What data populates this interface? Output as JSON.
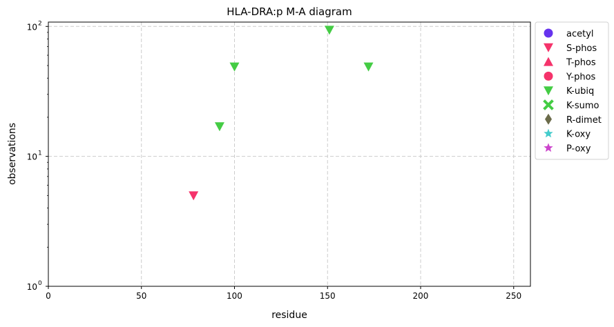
{
  "chart_data": {
    "type": "scatter",
    "title": "HLA-DRA:p M-A diagram",
    "xlabel": "residue",
    "ylabel": "observations",
    "xlim": [
      0,
      259
    ],
    "ylim": [
      1,
      108
    ],
    "yscale": "log",
    "x_ticks": [
      0,
      50,
      100,
      150,
      200,
      250
    ],
    "y_ticks": [
      {
        "value": 1,
        "base": "10",
        "exp": "0"
      },
      {
        "value": 10,
        "base": "10",
        "exp": "1"
      },
      {
        "value": 100,
        "base": "10",
        "exp": "2"
      }
    ],
    "grid": true,
    "legend_position": "outside-right-top",
    "series": [
      {
        "name": "acetyl",
        "marker": "circle",
        "color": "#6633ee",
        "points": []
      },
      {
        "name": "S-phos",
        "marker": "triangle-down",
        "color": "#f5336b",
        "points": [
          {
            "x": 78,
            "y": 5
          }
        ]
      },
      {
        "name": "T-phos",
        "marker": "triangle-up",
        "color": "#f5336b",
        "points": []
      },
      {
        "name": "Y-phos",
        "marker": "circle",
        "color": "#f5336b",
        "points": []
      },
      {
        "name": "K-ubiq",
        "marker": "triangle-down",
        "color": "#44cc44",
        "points": [
          {
            "x": 92,
            "y": 17
          },
          {
            "x": 100,
            "y": 49
          },
          {
            "x": 151,
            "y": 94
          },
          {
            "x": 172,
            "y": 49
          }
        ]
      },
      {
        "name": "K-sumo",
        "marker": "x",
        "color": "#44cc44",
        "points": []
      },
      {
        "name": "R-dimet",
        "marker": "diamond",
        "color": "#6b6b4a",
        "points": []
      },
      {
        "name": "K-oxy",
        "marker": "star",
        "color": "#44cccc",
        "points": []
      },
      {
        "name": "P-oxy",
        "marker": "star",
        "color": "#cc44cc",
        "points": []
      }
    ]
  }
}
